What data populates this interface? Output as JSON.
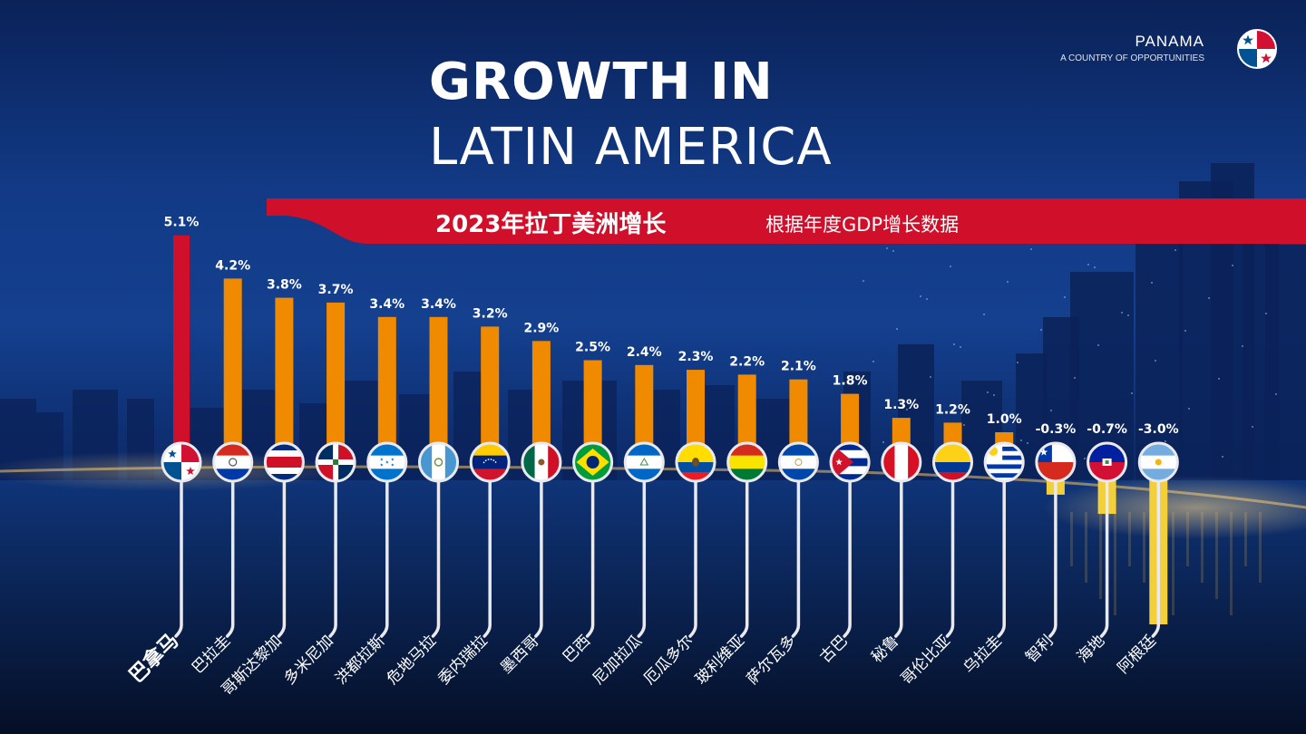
{
  "brand": {
    "name": "PANAMA",
    "tagline": "A COUNTRY OF OPPORTUNITIES",
    "logo_icon": "panama-flag-icon"
  },
  "headline": {
    "line1": "GROWTH IN",
    "line2": "LATIN AMERICA"
  },
  "banner": {
    "title": "2023年拉丁美洲增长",
    "subtitle": "根据年度GDP增长数据"
  },
  "colors": {
    "highlight_bar": "#d0102a",
    "positive_bar": "#f08a00",
    "negative_bar": "#f3cf3a",
    "banner": "#d0102a",
    "connector_line": "#e9e9ee"
  },
  "chart_data": {
    "type": "bar",
    "title": "2023年拉丁美洲增长",
    "subtitle": "根据年度GDP增长数据",
    "unit": "%",
    "highlight": "巴拿马",
    "categories": [
      "巴拿马",
      "巴拉圭",
      "哥斯达黎加",
      "多米尼加",
      "洪都拉斯",
      "危地马拉",
      "委内瑞拉",
      "墨西哥",
      "巴西",
      "尼加拉瓜",
      "厄瓜多尔",
      "玻利维亚",
      "萨尔瓦多",
      "古巴",
      "秘鲁",
      "哥伦比亚",
      "乌拉圭",
      "智利",
      "海地",
      "阿根廷"
    ],
    "values": [
      5.1,
      4.2,
      3.8,
      3.7,
      3.4,
      3.4,
      3.2,
      2.9,
      2.5,
      2.4,
      2.3,
      2.2,
      2.1,
      1.8,
      1.3,
      1.2,
      1.0,
      -0.3,
      -0.7,
      -3.0
    ],
    "data_labels": [
      "5.1%",
      "4.2%",
      "3.8%",
      "3.7%",
      "3.4%",
      "3.4%",
      "3.2%",
      "2.9%",
      "2.5%",
      "2.4%",
      "2.3%",
      "2.2%",
      "2.1%",
      "1.8%",
      "1.3%",
      "1.2%",
      "1.0%",
      "-0.3%",
      "-0.7%",
      "-3.0%"
    ],
    "flag_icons": [
      "panama-flag-icon",
      "paraguay-flag-icon",
      "costa-rica-flag-icon",
      "dominican-republic-flag-icon",
      "honduras-flag-icon",
      "guatemala-flag-icon",
      "venezuela-flag-icon",
      "mexico-flag-icon",
      "brazil-flag-icon",
      "nicaragua-flag-icon",
      "ecuador-flag-icon",
      "bolivia-flag-icon",
      "el-salvador-flag-icon",
      "cuba-flag-icon",
      "peru-flag-icon",
      "colombia-flag-icon",
      "uruguay-flag-icon",
      "chile-flag-icon",
      "haiti-flag-icon",
      "argentina-flag-icon"
    ],
    "grid": false,
    "legend": "none"
  }
}
